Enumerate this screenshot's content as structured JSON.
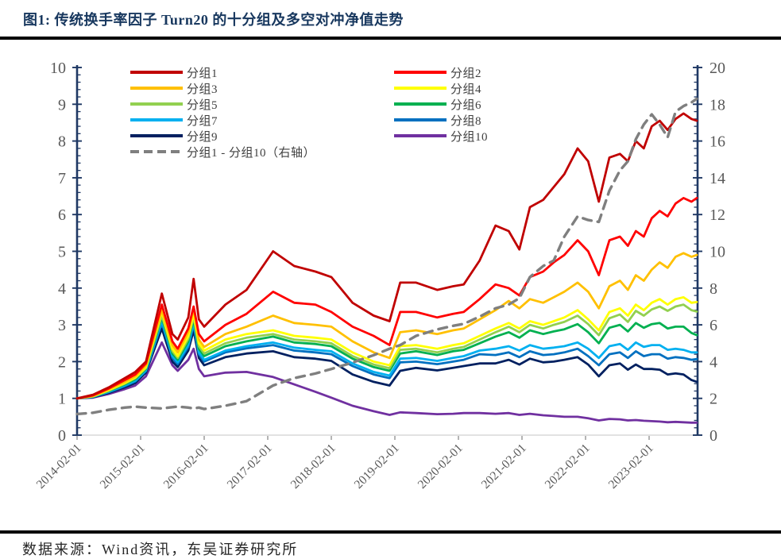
{
  "page": {
    "title": "图1:  传统换手率因子 Turn20 的十分组及多空对冲净值走势",
    "source_note": "数据来源：Wind资讯，东吴证券研究所"
  },
  "colors": {
    "title": "#17375E",
    "axis_line": "#1F3864",
    "tick_label": "#595959",
    "x_baseline": "#D9D9D9",
    "x_tick": "#8C8C8C",
    "dashed_series": "#7F7F7F"
  },
  "legend": {
    "col1": [
      0,
      2,
      4,
      6,
      8,
      10
    ],
    "col2": [
      1,
      3,
      5,
      7,
      9
    ]
  },
  "chart_data": {
    "type": "line",
    "title": "传统换手率因子 Turn20 的十分组及多空对冲净值走势",
    "xlabel": "",
    "ylabel_left": "",
    "ylabel_right": "",
    "grid": false,
    "legend_position": "top-inside",
    "x_axis": {
      "start_date": "2014-02-01",
      "unit": "months since 2014-02",
      "range_months": [
        0,
        117
      ],
      "tick_months": [
        0,
        12,
        24,
        36,
        48,
        60,
        72,
        84,
        96,
        108
      ],
      "label_dates": [
        "2014-02-01",
        "2015-02-01",
        "2016-02-01",
        "2017-02-01",
        "2018-02-01",
        "2019-02-01",
        "2020-02-01",
        "2021-02-01",
        "2022-02-01",
        "2023-02-01"
      ]
    },
    "y_axis_left": {
      "range": [
        0,
        10
      ],
      "major_ticks": [
        0,
        1,
        2,
        3,
        4,
        5,
        6,
        7,
        8,
        9,
        10
      ],
      "minor_step": 0.2
    },
    "y_axis_right": {
      "range": [
        0,
        20
      ],
      "major_ticks": [
        0,
        2,
        4,
        6,
        8,
        10,
        12,
        14,
        16,
        18,
        20
      ],
      "minor_step": 0.4
    },
    "x_months": [
      0,
      3,
      6,
      9,
      11,
      13,
      16,
      18,
      19,
      21,
      22,
      23,
      24,
      28,
      32,
      37,
      41,
      45,
      48,
      52,
      56,
      59,
      61,
      64,
      68,
      71,
      73,
      76,
      79,
      81.5,
      83.5,
      85.5,
      88,
      90,
      92,
      94.5,
      96.5,
      98.5,
      100.5,
      102.5,
      104,
      105.5,
      107,
      108.5,
      110,
      111.5,
      113,
      114.5,
      116,
      117
    ],
    "series": [
      {
        "id": "group-1",
        "name": "分组1",
        "color": "#C00000",
        "axis": "left",
        "style": "solid",
        "values": [
          1.0,
          1.1,
          1.3,
          1.55,
          1.72,
          2.0,
          3.85,
          2.75,
          2.6,
          3.2,
          4.25,
          3.15,
          2.95,
          3.55,
          3.95,
          5.0,
          4.6,
          4.45,
          4.3,
          3.6,
          3.25,
          3.1,
          4.15,
          4.15,
          3.95,
          4.05,
          4.1,
          4.75,
          5.7,
          5.55,
          5.05,
          6.2,
          6.4,
          6.75,
          7.1,
          7.8,
          7.45,
          6.35,
          7.55,
          7.65,
          7.45,
          8.0,
          7.8,
          8.4,
          8.55,
          8.3,
          8.6,
          8.75,
          8.6,
          8.55
        ]
      },
      {
        "id": "group-2",
        "name": "分组2",
        "color": "#FF0000",
        "axis": "left",
        "style": "solid",
        "values": [
          1.0,
          1.08,
          1.27,
          1.5,
          1.65,
          1.95,
          3.55,
          2.55,
          2.35,
          2.9,
          3.5,
          2.75,
          2.55,
          3.0,
          3.3,
          3.9,
          3.6,
          3.55,
          3.35,
          2.95,
          2.7,
          2.45,
          3.35,
          3.35,
          3.2,
          3.3,
          3.35,
          3.7,
          4.1,
          4.0,
          3.8,
          4.3,
          4.45,
          4.7,
          4.9,
          5.3,
          5.0,
          4.35,
          5.3,
          5.4,
          5.15,
          5.55,
          5.4,
          5.9,
          6.1,
          5.95,
          6.3,
          6.45,
          6.35,
          6.45
        ]
      },
      {
        "id": "group-3",
        "name": "分组3",
        "color": "#FFC000",
        "axis": "left",
        "style": "solid",
        "values": [
          1.0,
          1.07,
          1.25,
          1.45,
          1.6,
          1.9,
          3.4,
          2.45,
          2.25,
          2.8,
          3.45,
          2.6,
          2.4,
          2.75,
          2.95,
          3.25,
          3.05,
          3.0,
          2.95,
          2.55,
          2.25,
          2.1,
          2.8,
          2.85,
          2.75,
          2.85,
          2.9,
          3.15,
          3.4,
          3.65,
          3.45,
          3.7,
          3.6,
          3.75,
          3.9,
          4.15,
          3.9,
          3.45,
          4.05,
          4.2,
          3.95,
          4.35,
          4.2,
          4.5,
          4.7,
          4.55,
          4.85,
          4.95,
          4.85,
          4.9
        ]
      },
      {
        "id": "group-4",
        "name": "分组4",
        "color": "#FFFF00",
        "axis": "left",
        "style": "solid",
        "values": [
          1.0,
          1.06,
          1.23,
          1.42,
          1.57,
          1.85,
          3.35,
          2.35,
          2.15,
          2.7,
          3.3,
          2.5,
          2.3,
          2.6,
          2.75,
          2.85,
          2.7,
          2.65,
          2.6,
          2.25,
          2.0,
          1.9,
          2.42,
          2.45,
          2.35,
          2.45,
          2.5,
          2.7,
          2.9,
          3.05,
          2.9,
          3.1,
          3.0,
          3.1,
          3.2,
          3.4,
          3.15,
          2.85,
          3.35,
          3.45,
          3.25,
          3.55,
          3.4,
          3.6,
          3.7,
          3.55,
          3.7,
          3.75,
          3.6,
          3.62
        ]
      },
      {
        "id": "group-5",
        "name": "分组5",
        "color": "#92D050",
        "axis": "left",
        "style": "solid",
        "values": [
          1.0,
          1.05,
          1.21,
          1.4,
          1.55,
          1.82,
          3.25,
          2.28,
          2.1,
          2.62,
          3.22,
          2.42,
          2.22,
          2.5,
          2.65,
          2.75,
          2.6,
          2.55,
          2.5,
          2.15,
          1.92,
          1.82,
          2.32,
          2.35,
          2.25,
          2.35,
          2.4,
          2.6,
          2.8,
          2.95,
          2.8,
          3.0,
          2.9,
          3.0,
          3.08,
          3.25,
          3.02,
          2.72,
          3.18,
          3.28,
          3.08,
          3.38,
          3.25,
          3.42,
          3.5,
          3.38,
          3.5,
          3.55,
          3.4,
          3.36
        ]
      },
      {
        "id": "group-6",
        "name": "分组6",
        "color": "#00B050",
        "axis": "left",
        "style": "solid",
        "values": [
          1.0,
          1.05,
          1.2,
          1.38,
          1.52,
          1.8,
          3.2,
          2.22,
          2.05,
          2.55,
          3.15,
          2.35,
          2.15,
          2.42,
          2.55,
          2.68,
          2.52,
          2.48,
          2.42,
          2.08,
          1.85,
          1.75,
          2.22,
          2.28,
          2.18,
          2.28,
          2.32,
          2.5,
          2.68,
          2.8,
          2.65,
          2.85,
          2.75,
          2.82,
          2.88,
          3.02,
          2.8,
          2.5,
          2.92,
          3.0,
          2.82,
          3.05,
          2.92,
          3.02,
          3.05,
          2.9,
          2.95,
          2.95,
          2.78,
          2.72
        ]
      },
      {
        "id": "group-7",
        "name": "分组7",
        "color": "#00B0F0",
        "axis": "left",
        "style": "solid",
        "values": [
          1.0,
          1.04,
          1.18,
          1.35,
          1.48,
          1.76,
          3.1,
          2.15,
          1.98,
          2.45,
          3.05,
          2.25,
          2.05,
          2.3,
          2.42,
          2.52,
          2.38,
          2.32,
          2.28,
          1.95,
          1.72,
          1.62,
          2.08,
          2.1,
          2.02,
          2.1,
          2.15,
          2.3,
          2.35,
          2.42,
          2.3,
          2.45,
          2.35,
          2.38,
          2.42,
          2.52,
          2.35,
          2.1,
          2.42,
          2.48,
          2.32,
          2.52,
          2.4,
          2.45,
          2.45,
          2.32,
          2.35,
          2.32,
          2.25,
          2.25
        ]
      },
      {
        "id": "group-8",
        "name": "分组8",
        "color": "#0070C0",
        "axis": "left",
        "style": "solid",
        "values": [
          1.0,
          1.04,
          1.17,
          1.33,
          1.46,
          1.74,
          3.05,
          2.1,
          1.93,
          2.4,
          3.0,
          2.2,
          2.0,
          2.25,
          2.36,
          2.45,
          2.3,
          2.25,
          2.2,
          1.88,
          1.65,
          1.55,
          1.98,
          2.0,
          1.93,
          2.0,
          2.05,
          2.2,
          2.18,
          2.25,
          2.12,
          2.28,
          2.18,
          2.2,
          2.25,
          2.35,
          2.15,
          1.9,
          2.2,
          2.25,
          2.1,
          2.28,
          2.15,
          2.2,
          2.2,
          2.08,
          2.12,
          2.1,
          2.05,
          2.07
        ]
      },
      {
        "id": "group-9",
        "name": "分组9",
        "color": "#002060",
        "axis": "left",
        "style": "solid",
        "values": [
          1.0,
          1.03,
          1.15,
          1.3,
          1.42,
          1.7,
          2.9,
          2.0,
          1.85,
          2.3,
          2.85,
          2.1,
          1.9,
          2.12,
          2.22,
          2.28,
          2.12,
          2.08,
          2.02,
          1.65,
          1.45,
          1.35,
          1.75,
          1.83,
          1.76,
          1.83,
          1.88,
          1.95,
          1.95,
          2.05,
          1.92,
          2.08,
          1.98,
          2.0,
          2.05,
          2.12,
          1.92,
          1.6,
          1.9,
          1.95,
          1.78,
          1.92,
          1.8,
          1.8,
          1.78,
          1.65,
          1.68,
          1.65,
          1.5,
          1.45
        ]
      },
      {
        "id": "group-10",
        "name": "分组10",
        "color": "#7030A0",
        "axis": "left",
        "style": "solid",
        "values": [
          1.0,
          1.02,
          1.12,
          1.25,
          1.35,
          1.6,
          2.52,
          1.9,
          1.75,
          2.05,
          2.35,
          1.8,
          1.6,
          1.7,
          1.72,
          1.58,
          1.38,
          1.18,
          1.02,
          0.8,
          0.65,
          0.55,
          0.62,
          0.6,
          0.57,
          0.58,
          0.6,
          0.6,
          0.58,
          0.6,
          0.55,
          0.58,
          0.54,
          0.52,
          0.5,
          0.5,
          0.46,
          0.4,
          0.44,
          0.43,
          0.4,
          0.41,
          0.39,
          0.38,
          0.37,
          0.35,
          0.36,
          0.35,
          0.34,
          0.34
        ]
      },
      {
        "id": "long-short-spread",
        "name": "分组1 - 分组10（右轴）",
        "color": "#7F7F7F",
        "axis": "right",
        "style": "dashed",
        "values": [
          1.15,
          1.22,
          1.38,
          1.5,
          1.55,
          1.5,
          1.45,
          1.52,
          1.55,
          1.5,
          1.45,
          1.5,
          1.42,
          1.6,
          1.85,
          2.7,
          3.1,
          3.35,
          3.6,
          3.95,
          4.35,
          4.7,
          4.9,
          5.4,
          5.75,
          5.95,
          6.05,
          6.45,
          6.9,
          7.1,
          7.45,
          8.6,
          9.2,
          9.5,
          10.8,
          11.9,
          11.7,
          11.6,
          13.3,
          14.4,
          14.9,
          16.1,
          16.9,
          17.45,
          16.9,
          16.2,
          17.6,
          17.9,
          18.1,
          18.3
        ]
      }
    ]
  }
}
